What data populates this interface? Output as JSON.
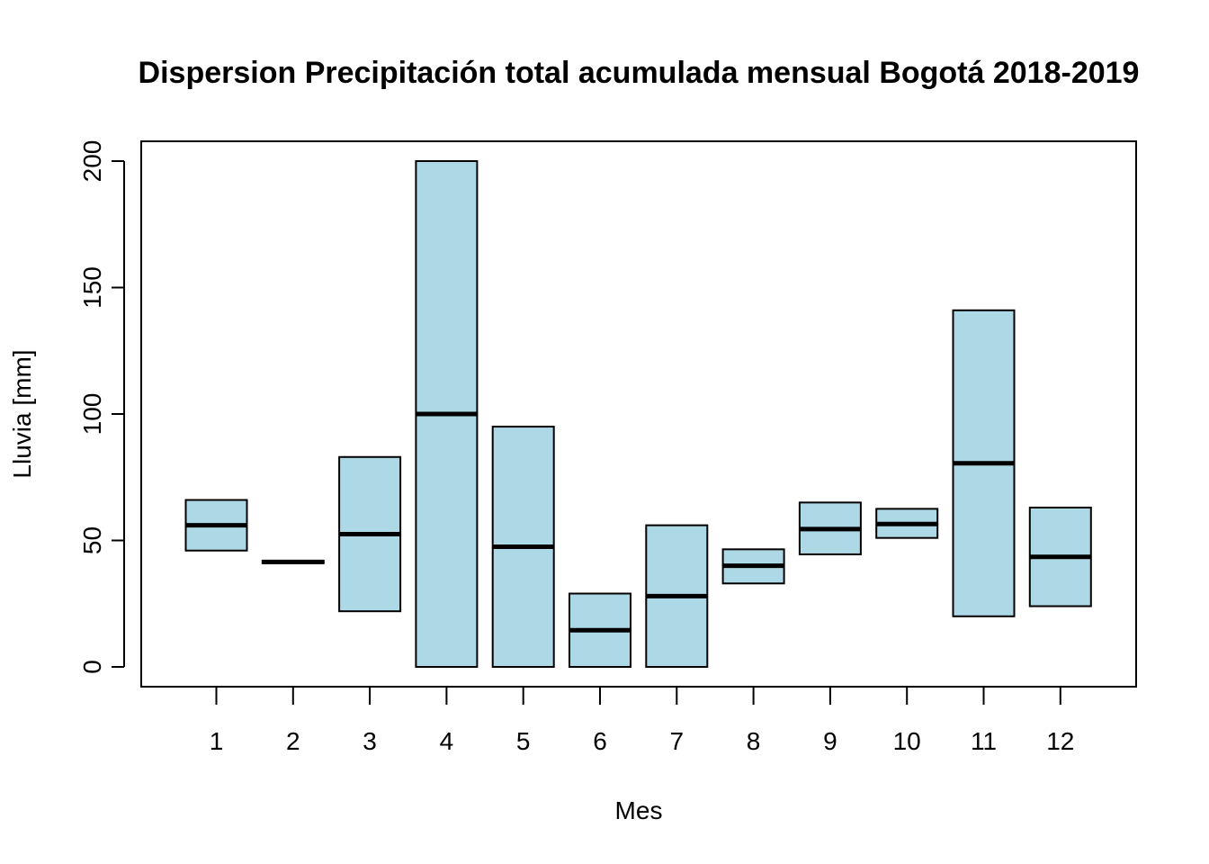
{
  "chart_data": {
    "type": "boxplot",
    "title": "Dispersion Precipitación total acumulada mensual Bogotá 2018-2019",
    "xlabel": "Mes",
    "ylabel": "Lluvia [mm]",
    "categories": [
      "1",
      "2",
      "3",
      "4",
      "5",
      "6",
      "7",
      "8",
      "9",
      "10",
      "11",
      "12"
    ],
    "boxes": [
      {
        "low": 46,
        "median": 56,
        "high": 66
      },
      {
        "low": 41,
        "median": 41.5,
        "high": 42
      },
      {
        "low": 22,
        "median": 52.5,
        "high": 83
      },
      {
        "low": 0,
        "median": 100,
        "high": 200
      },
      {
        "low": 0,
        "median": 47.5,
        "high": 95
      },
      {
        "low": 0,
        "median": 14.5,
        "high": 29
      },
      {
        "low": 0,
        "median": 28,
        "high": 56
      },
      {
        "low": 33,
        "median": 40,
        "high": 46.5
      },
      {
        "low": 44.5,
        "median": 54.5,
        "high": 65
      },
      {
        "low": 51,
        "median": 56.5,
        "high": 62.5
      },
      {
        "low": 20,
        "median": 80.5,
        "high": 141
      },
      {
        "low": 24,
        "median": 43.5,
        "high": 63
      }
    ],
    "yticks": [
      0,
      50,
      100,
      150,
      200
    ],
    "ylim": [
      -7.5,
      208
    ],
    "box_color": "#add8e6",
    "grid": false,
    "legend": "none"
  }
}
